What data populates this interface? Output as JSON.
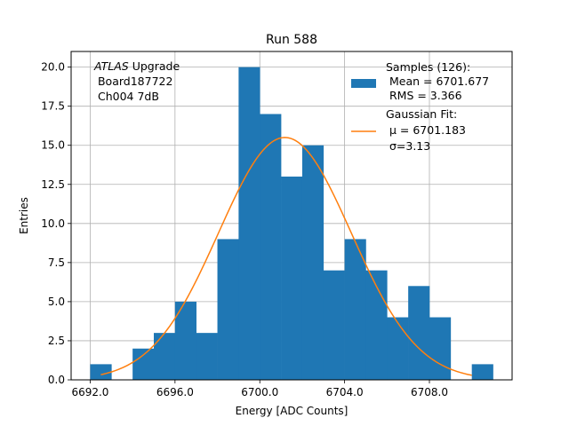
{
  "chart_data": {
    "type": "bar",
    "title": "Run 588",
    "xlabel": "Energy [ADC Counts]",
    "ylabel": "Entries",
    "xlim": [
      6691.1,
      6711.9
    ],
    "ylim": [
      0,
      21
    ],
    "grid": true,
    "xticks": [
      6692,
      6696,
      6700,
      6704,
      6708
    ],
    "xtick_labels": [
      "6692.0",
      "6696.0",
      "6700.0",
      "6704.0",
      "6708.0"
    ],
    "yticks": [
      0,
      2.5,
      5,
      7.5,
      10,
      12.5,
      15,
      17.5,
      20
    ],
    "ytick_labels": [
      "0.0",
      "2.5",
      "5.0",
      "7.5",
      "10.0",
      "12.5",
      "15.0",
      "17.5",
      "20.0"
    ],
    "annotation": {
      "italic": "ATLAS",
      "line1_rest": " Upgrade",
      "line2": " Board187722",
      "line3": " Ch004 7dB"
    },
    "histogram": {
      "name": "Samples (126):",
      "color": "#1f77b4",
      "bin_edges": [
        6692,
        6693,
        6694,
        6695,
        6696,
        6697,
        6698,
        6699,
        6700,
        6701,
        6702,
        6703,
        6704,
        6705,
        6706,
        6707,
        6708,
        6709,
        6710,
        6711
      ],
      "counts": [
        1,
        0,
        2,
        3,
        5,
        3,
        9,
        20,
        17,
        13,
        15,
        7,
        9,
        7,
        4,
        6,
        4,
        0,
        1
      ]
    },
    "fit": {
      "name": "Gaussian Fit:",
      "color": "#ff7f0e",
      "mu": 6701.183,
      "sigma": 3.13,
      "amplitude": 15.5,
      "x_range": [
        6692.5,
        6710.0
      ]
    },
    "legend": {
      "position": "top-right",
      "entries": [
        {
          "line1": "Samples (126):",
          "line2": " Mean = 6701.677",
          "line3": " RMS = 3.366"
        },
        {
          "line1": "Gaussian Fit:",
          "line2": " μ = 6701.183",
          "line3": " σ=3.13"
        }
      ]
    }
  }
}
